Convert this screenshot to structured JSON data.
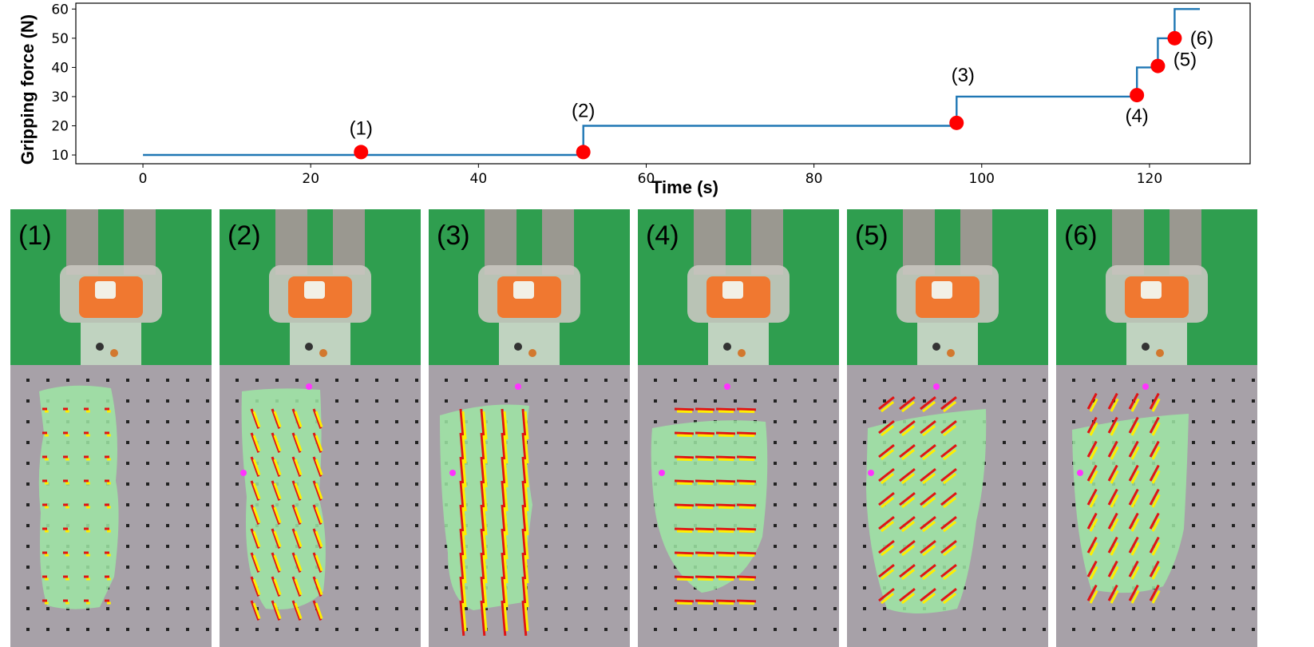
{
  "chart_data": {
    "type": "line",
    "step": true,
    "xlabel": "Time (s)",
    "ylabel": "Gripping force (N)",
    "xlim": [
      -8,
      132
    ],
    "ylim": [
      7,
      62
    ],
    "xticks": [
      0,
      20,
      40,
      60,
      80,
      100,
      120
    ],
    "yticks": [
      10,
      20,
      30,
      40,
      50,
      60
    ],
    "grid": false,
    "line_color": "#1f77b4",
    "series": [
      {
        "x": [
          0,
          52.5,
          52.5,
          97,
          97,
          118.5,
          118.5,
          121,
          121,
          123,
          123,
          126
        ],
        "y": [
          10,
          10,
          20,
          20,
          30,
          30,
          40,
          40,
          50,
          50,
          60,
          60
        ]
      }
    ],
    "markers": [
      {
        "label": "(1)",
        "x": 26,
        "y": 11
      },
      {
        "label": "(2)",
        "x": 52.5,
        "y": 11
      },
      {
        "label": "(3)",
        "x": 97,
        "y": 21
      },
      {
        "label": "(4)",
        "x": 118.5,
        "y": 30.5
      },
      {
        "label": "(5)",
        "x": 121,
        "y": 40.5
      },
      {
        "label": "(6)",
        "x": 123,
        "y": 50
      }
    ],
    "marker_color": "#ff0000"
  },
  "panels": [
    {
      "label": "(1)"
    },
    {
      "label": "(2)"
    },
    {
      "label": "(3)"
    },
    {
      "label": "(4)"
    },
    {
      "label": "(5)"
    },
    {
      "label": "(6)"
    }
  ],
  "colors": {
    "green_screen": "#2f9e4f",
    "bottle_cap": "#f07830",
    "sensor_bg": "#a7a1a8",
    "contact_area": "#9ee6a4",
    "arrow_red": "#e01414",
    "arrow_yellow": "#ffee00",
    "marker_magenta": "#ff33ff"
  }
}
